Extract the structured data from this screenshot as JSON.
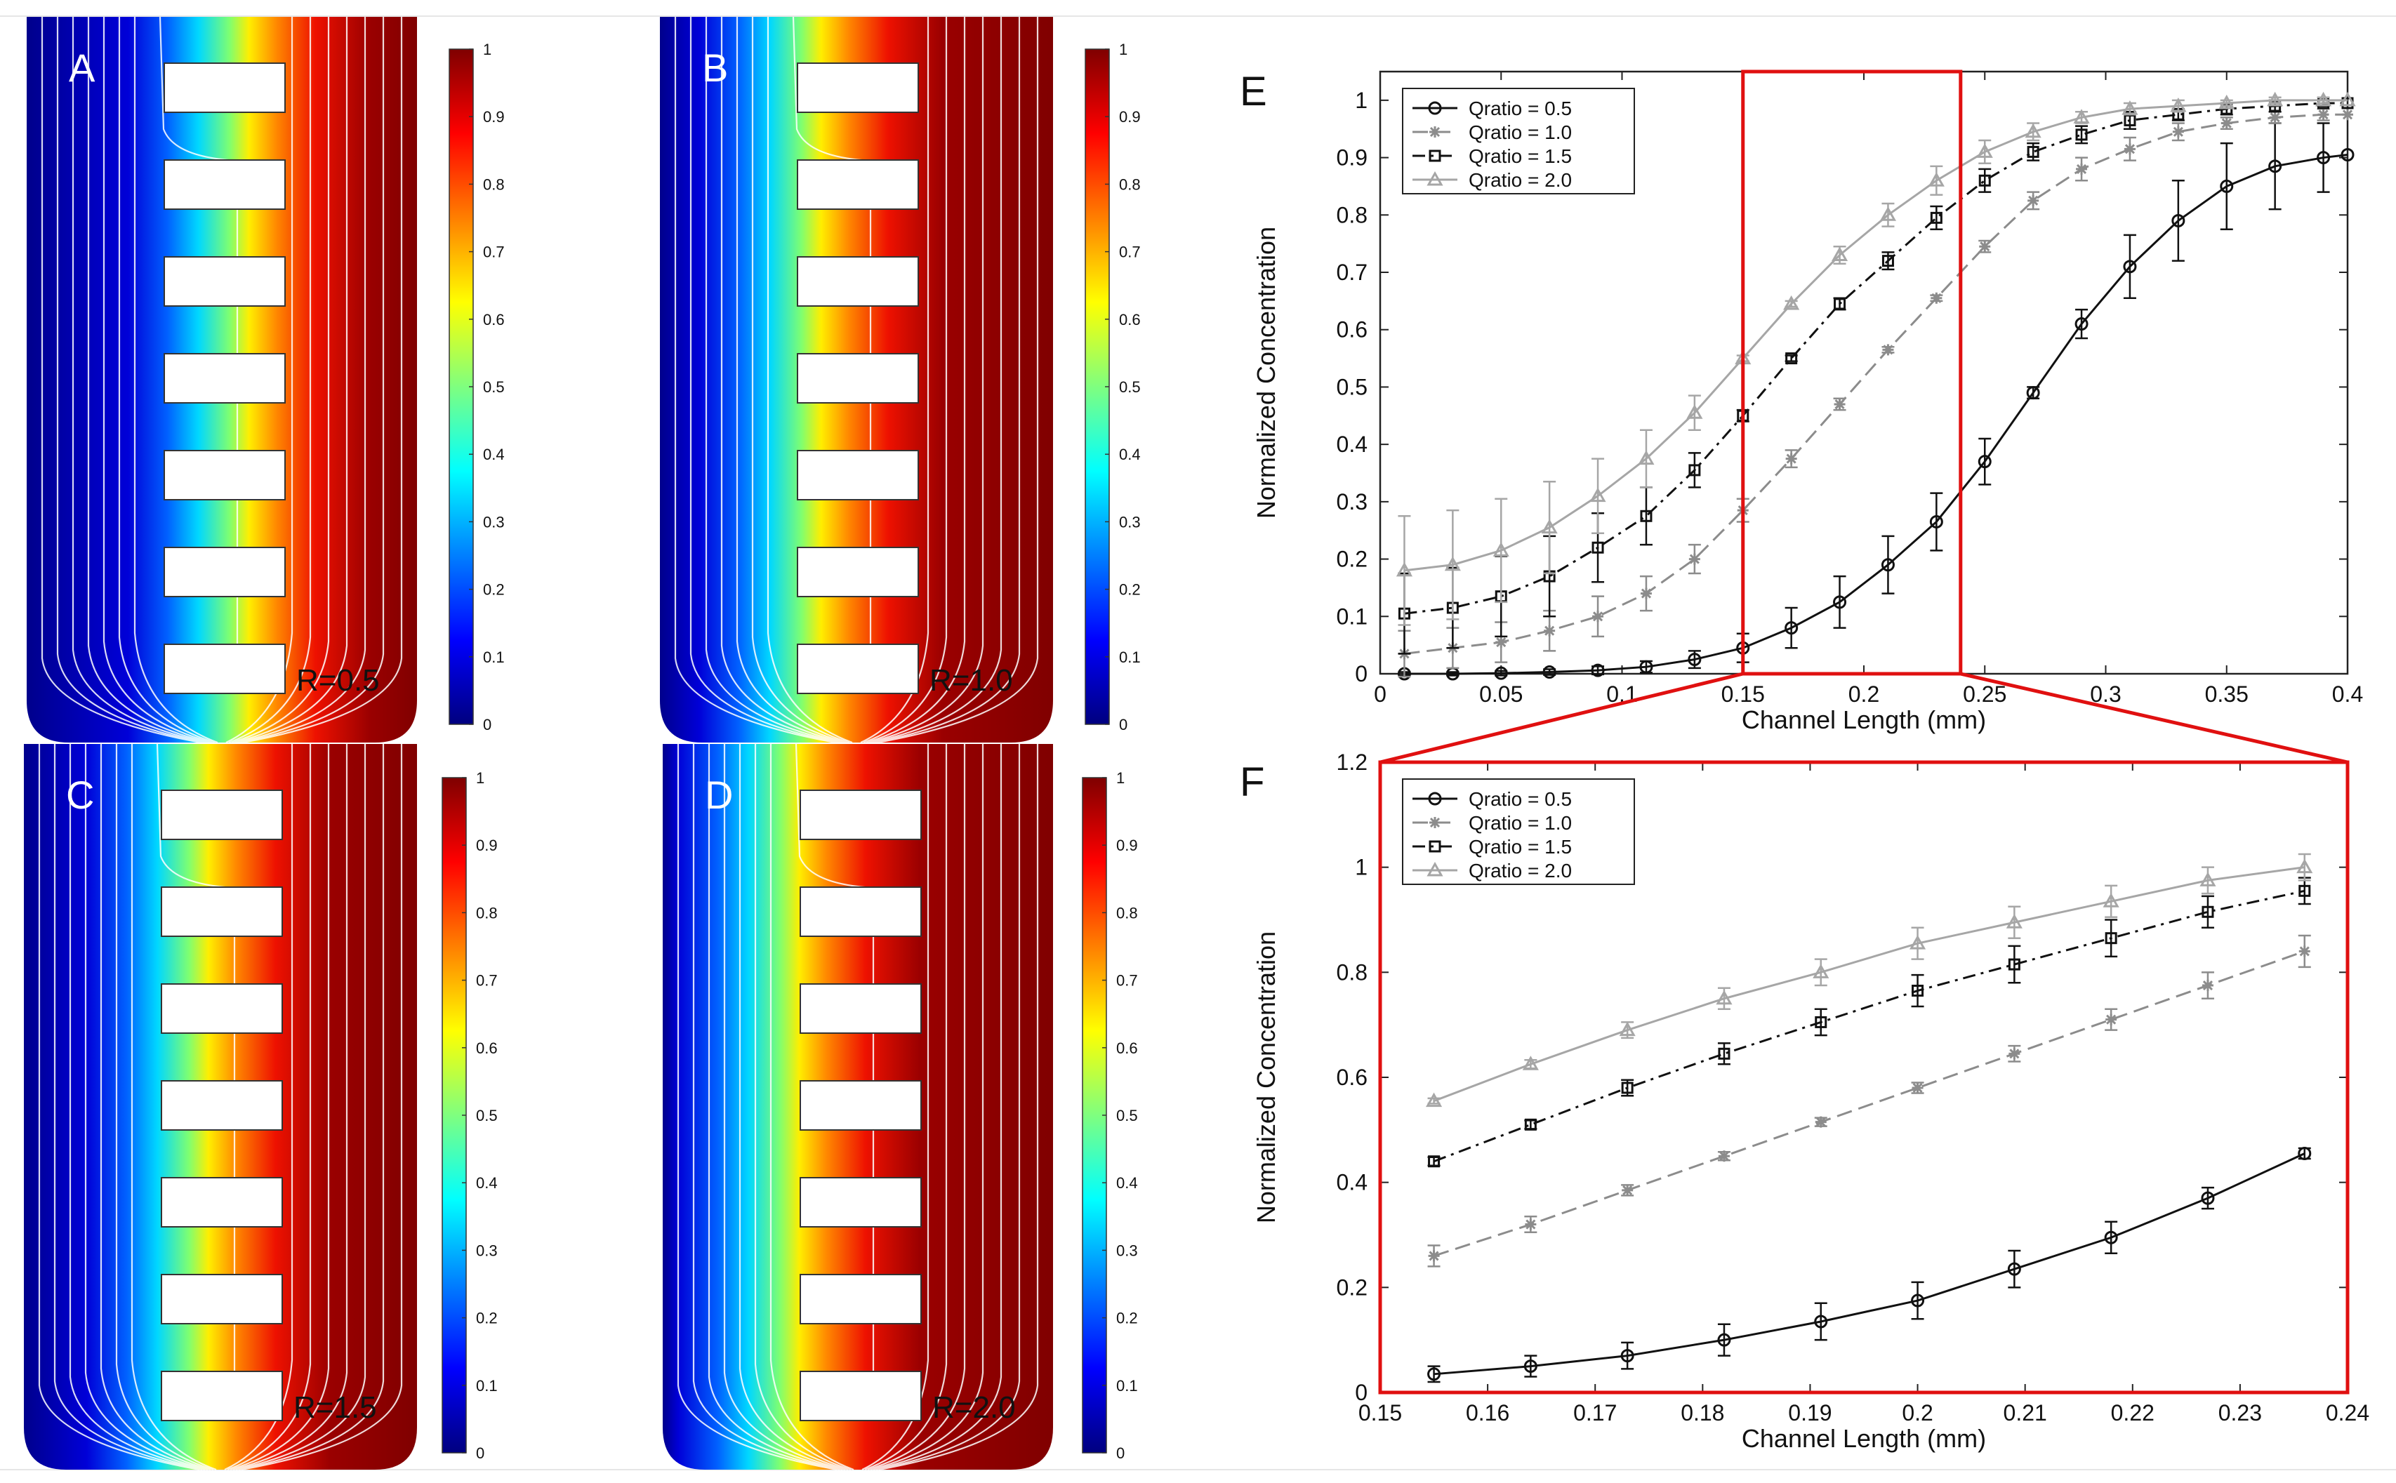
{
  "panels": [
    {
      "letter": "A",
      "ratio": "R=0.5",
      "front": 0.52
    },
    {
      "letter": "B",
      "ratio": "R=1.0",
      "front": 0.36
    },
    {
      "letter": "C",
      "ratio": "R=1.5",
      "front": 0.42
    },
    {
      "letter": "D",
      "ratio": "R=2.0",
      "front": 0.3
    }
  ],
  "colorbar": {
    "ticks": [
      "1",
      "0.9",
      "0.8",
      "0.7",
      "0.6",
      "0.5",
      "0.4",
      "0.3",
      "0.2",
      "0.1",
      "0"
    ],
    "colors": [
      "#00007f",
      "#0000ff",
      "#007fff",
      "#00ffff",
      "#7fff7f",
      "#ffff00",
      "#ff7f00",
      "#ff0000",
      "#7f0000"
    ]
  },
  "series_styles": [
    {
      "name": "Qratio = 0.5",
      "color": "#111111",
      "marker": "circle",
      "dash": ""
    },
    {
      "name": "Qratio = 1.0",
      "color": "#8c8c8c",
      "marker": "star",
      "dash": "22,10"
    },
    {
      "name": "Qratio = 1.5",
      "color": "#111111",
      "marker": "square",
      "dash": "18,8,4,8"
    },
    {
      "name": "Qratio = 2.0",
      "color": "#a6a6a6",
      "marker": "triangle",
      "dash": ""
    }
  ],
  "chart_data": [
    {
      "type": "line",
      "panel_label": "E",
      "title": "",
      "xlabel": "Channel Length (mm)",
      "ylabel": "Normalized Concentration",
      "xlim": [
        0,
        0.4
      ],
      "ylim": [
        0,
        1.05
      ],
      "xticks": [
        "0",
        "0.05",
        "0.1",
        "0.15",
        "0.2",
        "0.25",
        "0.3",
        "0.35",
        "0.4"
      ],
      "yticks": [
        "0",
        "0.1",
        "0.2",
        "0.3",
        "0.4",
        "0.5",
        "0.6",
        "0.7",
        "0.8",
        "0.9",
        "1"
      ],
      "legend": "top-left",
      "highlight_x": [
        0.15,
        0.24
      ],
      "x": [
        0.01,
        0.03,
        0.05,
        0.07,
        0.09,
        0.11,
        0.13,
        0.15,
        0.17,
        0.19,
        0.21,
        0.23,
        0.25,
        0.27,
        0.29,
        0.31,
        0.33,
        0.35,
        0.37,
        0.39,
        0.4
      ],
      "series": [
        {
          "name": "Qratio = 0.5",
          "values": [
            0.0,
            0.0,
            0.001,
            0.003,
            0.006,
            0.012,
            0.025,
            0.045,
            0.08,
            0.125,
            0.19,
            0.265,
            0.37,
            0.49,
            0.61,
            0.71,
            0.79,
            0.85,
            0.885,
            0.9,
            0.905
          ],
          "errors": [
            0.003,
            0.003,
            0.004,
            0.005,
            0.007,
            0.01,
            0.015,
            0.025,
            0.035,
            0.045,
            0.05,
            0.05,
            0.04,
            0.01,
            0.025,
            0.055,
            0.07,
            0.075,
            0.075,
            0.06,
            0.0
          ]
        },
        {
          "name": "Qratio = 1.0",
          "values": [
            0.035,
            0.045,
            0.055,
            0.075,
            0.1,
            0.14,
            0.2,
            0.285,
            0.375,
            0.47,
            0.565,
            0.655,
            0.745,
            0.825,
            0.88,
            0.915,
            0.945,
            0.96,
            0.97,
            0.975,
            0.975
          ],
          "errors": [
            0.04,
            0.035,
            0.035,
            0.035,
            0.035,
            0.03,
            0.025,
            0.02,
            0.015,
            0.01,
            0.005,
            0.005,
            0.01,
            0.015,
            0.02,
            0.02,
            0.015,
            0.01,
            0.01,
            0.01,
            0.0
          ]
        },
        {
          "name": "Qratio = 1.5",
          "values": [
            0.105,
            0.115,
            0.135,
            0.17,
            0.22,
            0.275,
            0.355,
            0.45,
            0.55,
            0.645,
            0.72,
            0.795,
            0.86,
            0.91,
            0.94,
            0.965,
            0.975,
            0.985,
            0.99,
            0.995,
            0.995
          ],
          "errors": [
            0.07,
            0.07,
            0.07,
            0.07,
            0.06,
            0.05,
            0.03,
            0.01,
            0.005,
            0.01,
            0.015,
            0.02,
            0.02,
            0.015,
            0.015,
            0.015,
            0.01,
            0.01,
            0.01,
            0.005,
            0.0
          ]
        },
        {
          "name": "Qratio = 2.0",
          "values": [
            0.18,
            0.19,
            0.215,
            0.255,
            0.31,
            0.375,
            0.455,
            0.55,
            0.645,
            0.73,
            0.8,
            0.86,
            0.91,
            0.945,
            0.97,
            0.985,
            0.99,
            0.995,
            1.0,
            1.0,
            1.0
          ],
          "errors": [
            0.095,
            0.095,
            0.09,
            0.08,
            0.065,
            0.05,
            0.03,
            0.005,
            0.005,
            0.015,
            0.02,
            0.025,
            0.02,
            0.015,
            0.01,
            0.01,
            0.01,
            0.005,
            0.005,
            0.005,
            0.0
          ]
        }
      ]
    },
    {
      "type": "line",
      "panel_label": "F",
      "title": "",
      "xlabel": "Channel Length (mm)",
      "ylabel": "Normalized Concentration",
      "xlim": [
        0.15,
        0.24
      ],
      "ylim": [
        0,
        1.2
      ],
      "xticks": [
        "0.15",
        "0.16",
        "0.17",
        "0.18",
        "0.19",
        "0.2",
        "0.21",
        "0.22",
        "0.23",
        "0.24"
      ],
      "yticks": [
        "0",
        "0.2",
        "0.4",
        "0.6",
        "0.8",
        "1",
        "1.2"
      ],
      "legend": "top-left",
      "x": [
        0.155,
        0.164,
        0.173,
        0.182,
        0.191,
        0.2,
        0.209,
        0.218,
        0.227,
        0.236
      ],
      "series": [
        {
          "name": "Qratio = 0.5",
          "values": [
            0.035,
            0.05,
            0.07,
            0.1,
            0.135,
            0.175,
            0.235,
            0.295,
            0.37,
            0.455
          ],
          "errors": [
            0.015,
            0.02,
            0.025,
            0.03,
            0.035,
            0.035,
            0.035,
            0.03,
            0.02,
            0.01
          ]
        },
        {
          "name": "Qratio = 1.0",
          "values": [
            0.26,
            0.32,
            0.385,
            0.45,
            0.515,
            0.58,
            0.645,
            0.71,
            0.775,
            0.84
          ],
          "errors": [
            0.02,
            0.015,
            0.01,
            0.008,
            0.008,
            0.01,
            0.015,
            0.02,
            0.025,
            0.03
          ]
        },
        {
          "name": "Qratio = 1.5",
          "values": [
            0.44,
            0.51,
            0.58,
            0.645,
            0.705,
            0.765,
            0.815,
            0.865,
            0.915,
            0.955
          ],
          "errors": [
            0.008,
            0.008,
            0.015,
            0.02,
            0.025,
            0.03,
            0.035,
            0.035,
            0.03,
            0.025
          ]
        },
        {
          "name": "Qratio = 2.0",
          "values": [
            0.555,
            0.625,
            0.69,
            0.75,
            0.8,
            0.855,
            0.895,
            0.935,
            0.975,
            1.0
          ],
          "errors": [
            0.005,
            0.008,
            0.015,
            0.02,
            0.025,
            0.03,
            0.03,
            0.03,
            0.025,
            0.025
          ]
        }
      ]
    }
  ]
}
